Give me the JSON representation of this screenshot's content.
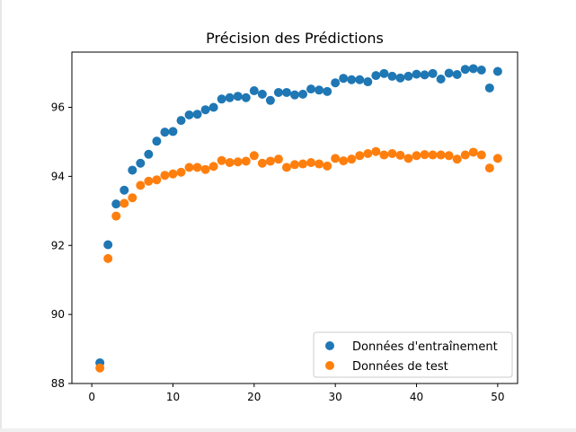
{
  "chart_data": {
    "type": "scatter",
    "title": "Précision des Prédictions",
    "xlabel": "",
    "ylabel": "",
    "xlim": [
      -2.45,
      52.45
    ],
    "ylim": [
      88,
      97.6
    ],
    "xticks": [
      0,
      10,
      20,
      30,
      40,
      50
    ],
    "yticks": [
      88,
      90,
      92,
      94,
      96
    ],
    "grid": false,
    "legend_position": "lower-right",
    "x": [
      1,
      2,
      3,
      4,
      5,
      6,
      7,
      8,
      9,
      10,
      11,
      12,
      13,
      14,
      15,
      16,
      17,
      18,
      19,
      20,
      21,
      22,
      23,
      24,
      25,
      26,
      27,
      28,
      29,
      30,
      31,
      32,
      33,
      34,
      35,
      36,
      37,
      38,
      39,
      40,
      41,
      42,
      43,
      44,
      45,
      46,
      47,
      48,
      49,
      50
    ],
    "series": [
      {
        "name": "Données d'entraînement",
        "color": "#1f77b4",
        "values": [
          88.6,
          92.02,
          93.2,
          93.6,
          94.18,
          94.38,
          94.64,
          95.02,
          95.28,
          95.3,
          95.62,
          95.78,
          95.8,
          95.93,
          96.0,
          96.24,
          96.28,
          96.32,
          96.28,
          96.48,
          96.38,
          96.2,
          96.43,
          96.43,
          96.36,
          96.38,
          96.53,
          96.5,
          96.46,
          96.71,
          96.84,
          96.8,
          96.8,
          96.74,
          96.92,
          96.98,
          96.9,
          96.85,
          96.9,
          96.96,
          96.94,
          96.98,
          96.82,
          96.99,
          96.95,
          97.1,
          97.12,
          97.08,
          96.56,
          97.04
        ]
      },
      {
        "name": "Données de test",
        "color": "#ff7f0e",
        "values": [
          88.45,
          91.62,
          92.85,
          93.22,
          93.38,
          93.74,
          93.86,
          93.9,
          94.03,
          94.07,
          94.12,
          94.26,
          94.26,
          94.2,
          94.29,
          94.46,
          94.4,
          94.42,
          94.44,
          94.6,
          94.38,
          94.44,
          94.5,
          94.26,
          94.34,
          94.36,
          94.4,
          94.36,
          94.3,
          94.52,
          94.45,
          94.5,
          94.6,
          94.66,
          94.72,
          94.62,
          94.66,
          94.61,
          94.52,
          94.6,
          94.63,
          94.62,
          94.62,
          94.6,
          94.5,
          94.62,
          94.7,
          94.62,
          94.24,
          94.52
        ]
      }
    ]
  }
}
